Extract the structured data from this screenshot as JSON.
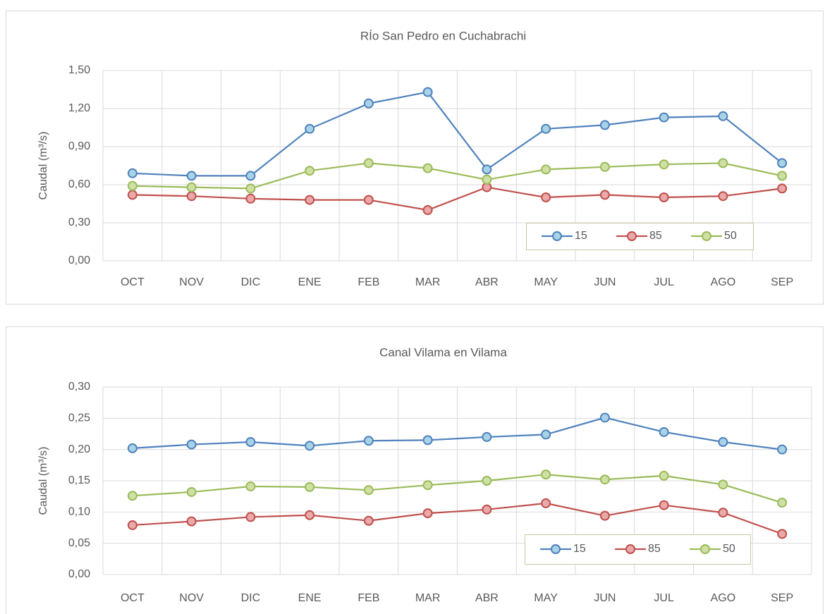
{
  "chart_data": [
    {
      "type": "line",
      "title": "RÍo San Pedro en Cuchabrachi",
      "y_label": "Caudal (m³/s)",
      "categories": [
        "OCT",
        "NOV",
        "DIC",
        "ENE",
        "FEB",
        "MAR",
        "ABR",
        "MAY",
        "JUN",
        "JUL",
        "AGO",
        "SEP"
      ],
      "series": [
        {
          "name": "15",
          "color": "#4f81bd",
          "marker_color": "#a8d3e6",
          "values": [
            0.69,
            0.67,
            0.67,
            1.04,
            1.24,
            1.33,
            0.72,
            1.04,
            1.07,
            1.13,
            1.14,
            0.77
          ]
        },
        {
          "name": "85",
          "color": "#c0504d",
          "marker_color": "#e8a9a8",
          "values": [
            0.52,
            0.51,
            0.49,
            0.48,
            0.48,
            0.4,
            0.58,
            0.5,
            0.52,
            0.5,
            0.51,
            0.57
          ]
        },
        {
          "name": "50",
          "color": "#9bbb59",
          "marker_color": "#cfe0a5",
          "values": [
            0.59,
            0.58,
            0.57,
            0.71,
            0.77,
            0.73,
            0.64,
            0.72,
            0.74,
            0.76,
            0.77,
            0.67
          ]
        }
      ],
      "ylim": [
        0,
        1.5
      ],
      "yticks": [
        {
          "value": 0,
          "label": "0,00"
        },
        {
          "value": 0.3,
          "label": "0,30"
        },
        {
          "value": 0.6,
          "label": "0,60"
        },
        {
          "value": 0.9,
          "label": "0,90"
        },
        {
          "value": 1.2,
          "label": "1,20"
        },
        {
          "value": 1.5,
          "label": "1,50"
        }
      ],
      "grid": true,
      "legend": "lower right"
    },
    {
      "type": "line",
      "title": "Canal Vilama en Vilama",
      "y_label": "Caudal (m³/s)",
      "categories": [
        "OCT",
        "NOV",
        "DIC",
        "ENE",
        "FEB",
        "MAR",
        "ABR",
        "MAY",
        "JUN",
        "JUL",
        "AGO",
        "SEP"
      ],
      "series": [
        {
          "name": "15",
          "color": "#4f81bd",
          "marker_color": "#a8d3e6",
          "values": [
            0.202,
            0.208,
            0.212,
            0.206,
            0.214,
            0.215,
            0.22,
            0.224,
            0.251,
            0.228,
            0.212,
            0.2
          ]
        },
        {
          "name": "85",
          "color": "#c0504d",
          "marker_color": "#e8a9a8",
          "values": [
            0.079,
            0.085,
            0.092,
            0.095,
            0.086,
            0.098,
            0.104,
            0.114,
            0.094,
            0.111,
            0.099,
            0.065
          ]
        },
        {
          "name": "50",
          "color": "#9bbb59",
          "marker_color": "#cfe0a5",
          "values": [
            0.126,
            0.132,
            0.141,
            0.14,
            0.135,
            0.143,
            0.15,
            0.16,
            0.152,
            0.158,
            0.144,
            0.115
          ]
        }
      ],
      "ylim": [
        0,
        0.3
      ],
      "yticks": [
        {
          "value": 0,
          "label": "0,00"
        },
        {
          "value": 0.05,
          "label": "0,05"
        },
        {
          "value": 0.1,
          "label": "0,10"
        },
        {
          "value": 0.15,
          "label": "0,15"
        },
        {
          "value": 0.2,
          "label": "0,20"
        },
        {
          "value": 0.25,
          "label": "0,25"
        },
        {
          "value": 0.3,
          "label": "0,30"
        }
      ],
      "grid": true,
      "legend": "lower right"
    }
  ]
}
